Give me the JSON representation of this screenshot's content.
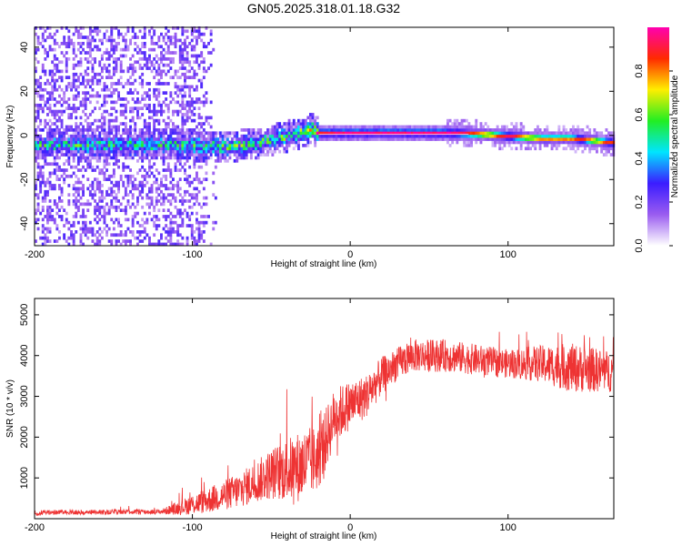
{
  "title": "GN05.2025.318.01.18.G32",
  "chart_data": [
    {
      "type": "heatmap",
      "name": "spectrogram",
      "xlabel": "Height of straight line (km)",
      "ylabel": "Frequency (Hz)",
      "xlim": [
        -200,
        167
      ],
      "ylim": [
        -50,
        49
      ],
      "xticks": [
        -200,
        -100,
        0,
        100
      ],
      "yticks": [
        -40,
        -20,
        0,
        20,
        40
      ],
      "colorbar": {
        "label": "Normalized spectral amplitude",
        "range": [
          0.0,
          1.0
        ],
        "ticks": [
          0.0,
          0.2,
          0.4,
          0.6,
          0.8
        ],
        "colors": [
          "#ffffff",
          "#9a5cf0",
          "#3b1cff",
          "#00e5ff",
          "#22ee22",
          "#ffee00",
          "#ff2a00",
          "#ff00b0"
        ]
      },
      "ridge": {
        "x": [
          -100,
          -80,
          -60,
          -40,
          -30,
          -25,
          -20,
          0,
          20,
          40,
          60,
          80,
          100,
          120,
          140,
          167
        ],
        "freq_hz": [
          -5,
          -6,
          -4,
          -1,
          1,
          2,
          0.5,
          0.5,
          0.5,
          0.5,
          0.5,
          0,
          -1,
          -2,
          -2,
          -4
        ],
        "amplitude": [
          0.35,
          0.4,
          0.4,
          0.45,
          0.55,
          0.6,
          0.8,
          0.85,
          0.85,
          0.85,
          0.85,
          0.8,
          0.8,
          0.75,
          0.75,
          0.75
        ]
      },
      "noise_region_x": [
        -200,
        -100
      ]
    },
    {
      "type": "line",
      "name": "snr",
      "xlabel": "Height of straight line (km)",
      "ylabel": "SNR (10 * v/v)",
      "xlim": [
        -200,
        167
      ],
      "ylim": [
        0,
        5400
      ],
      "xticks": [
        -200,
        -100,
        0,
        100
      ],
      "yticks": [
        1000,
        2000,
        3000,
        4000,
        5000
      ],
      "color": "#ee3333",
      "trend": {
        "x": [
          -200,
          -120,
          -110,
          -90,
          -70,
          -50,
          -30,
          -20,
          -10,
          0,
          10,
          20,
          30,
          40,
          60,
          80,
          100,
          120,
          140,
          167
        ],
        "y": [
          150,
          170,
          250,
          450,
          700,
          1100,
          1300,
          1500,
          2500,
          2800,
          3000,
          3500,
          3800,
          4000,
          4000,
          3900,
          3800,
          3800,
          3700,
          3600
        ]
      },
      "noise_amplitude": {
        "x": [
          -200,
          -120,
          -100,
          -60,
          -30,
          -20,
          0,
          30,
          60,
          100,
          120,
          140,
          167
        ],
        "y": [
          60,
          60,
          250,
          500,
          900,
          800,
          600,
          400,
          400,
          350,
          450,
          600,
          500
        ]
      }
    }
  ]
}
